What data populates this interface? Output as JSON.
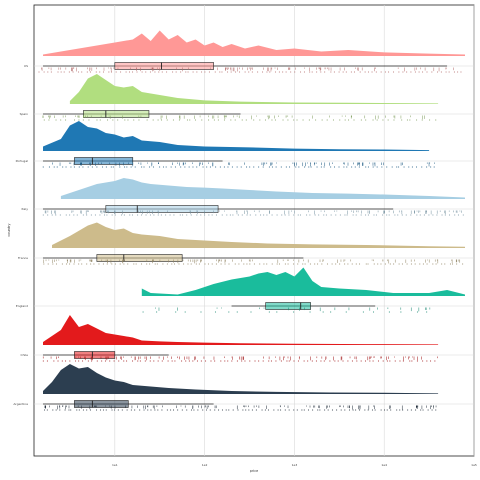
{
  "chart_data": {
    "type": "raincloud",
    "title": "",
    "xlabel": "price",
    "ylabel": "country",
    "xlim": [
      -0.9,
      4.0
    ],
    "x_ticks": [
      0,
      1,
      2,
      3,
      4
    ],
    "x_tick_labels": [
      "1e1",
      "1e2",
      "1e3",
      "1e4",
      "1e5"
    ],
    "grid": true,
    "categories": [
      "US",
      "Spain",
      "Portugal",
      "Italy",
      "France",
      "England",
      "Chile",
      "Argentina"
    ],
    "series": [
      {
        "name": "US",
        "color": "#FF9896",
        "density": [
          [
            -0.8,
            0.05
          ],
          [
            -0.6,
            0.15
          ],
          [
            -0.4,
            0.25
          ],
          [
            -0.2,
            0.35
          ],
          [
            0,
            0.45
          ],
          [
            0.2,
            0.55
          ],
          [
            0.3,
            0.75
          ],
          [
            0.4,
            0.5
          ],
          [
            0.5,
            0.85
          ],
          [
            0.6,
            0.55
          ],
          [
            0.7,
            0.7
          ],
          [
            0.8,
            0.45
          ],
          [
            0.9,
            0.55
          ],
          [
            1.0,
            0.35
          ],
          [
            1.1,
            0.45
          ],
          [
            1.2,
            0.3
          ],
          [
            1.3,
            0.4
          ],
          [
            1.45,
            0.25
          ],
          [
            1.6,
            0.35
          ],
          [
            1.8,
            0.2
          ],
          [
            2.0,
            0.25
          ],
          [
            2.3,
            0.15
          ],
          [
            2.6,
            0.2
          ],
          [
            3.0,
            0.12
          ],
          [
            3.5,
            0.08
          ],
          [
            3.9,
            0.05
          ]
        ],
        "box": {
          "q1": 0.0,
          "median": 0.52,
          "q3": 1.1,
          "whisker_low": -0.8,
          "whisker_high": 3.7
        },
        "points_range": [
          -0.85,
          3.9
        ],
        "n_points": 100
      },
      {
        "name": "Spain",
        "color": "#B1DE7F",
        "density": [
          [
            -0.5,
            0.1
          ],
          [
            -0.4,
            0.4
          ],
          [
            -0.3,
            0.85
          ],
          [
            -0.2,
            1.0
          ],
          [
            -0.1,
            0.8
          ],
          [
            0,
            0.6
          ],
          [
            0.1,
            0.55
          ],
          [
            0.2,
            0.6
          ],
          [
            0.3,
            0.4
          ],
          [
            0.5,
            0.3
          ],
          [
            0.7,
            0.2
          ],
          [
            1.0,
            0.12
          ],
          [
            1.4,
            0.08
          ],
          [
            2.0,
            0.05
          ],
          [
            2.6,
            0.04
          ],
          [
            3.2,
            0.03
          ],
          [
            3.6,
            0.02
          ]
        ],
        "box": {
          "q1": -0.35,
          "median": -0.1,
          "q3": 0.38,
          "whisker_low": -0.8,
          "whisker_high": 1.4
        },
        "points_range": [
          -0.8,
          3.6
        ],
        "n_points": 70
      },
      {
        "name": "Portugal",
        "color": "#1F78B4",
        "density": [
          [
            -0.8,
            0.15
          ],
          [
            -0.6,
            0.4
          ],
          [
            -0.5,
            0.85
          ],
          [
            -0.4,
            1.0
          ],
          [
            -0.3,
            0.8
          ],
          [
            -0.2,
            0.75
          ],
          [
            -0.1,
            0.6
          ],
          [
            0,
            0.55
          ],
          [
            0.1,
            0.45
          ],
          [
            0.2,
            0.5
          ],
          [
            0.3,
            0.35
          ],
          [
            0.5,
            0.3
          ],
          [
            0.7,
            0.2
          ],
          [
            1.0,
            0.15
          ],
          [
            1.5,
            0.12
          ],
          [
            2.0,
            0.08
          ],
          [
            2.5,
            0.06
          ],
          [
            3.0,
            0.05
          ],
          [
            3.5,
            0.03
          ]
        ],
        "box": {
          "q1": -0.45,
          "median": -0.25,
          "q3": 0.2,
          "whisker_low": -0.8,
          "whisker_high": 1.2
        },
        "points_range": [
          -0.8,
          3.6
        ],
        "n_points": 90
      },
      {
        "name": "Italy",
        "color": "#A6CEE3",
        "density": [
          [
            -0.6,
            0.1
          ],
          [
            -0.4,
            0.3
          ],
          [
            -0.2,
            0.5
          ],
          [
            0,
            0.6
          ],
          [
            0.1,
            0.7
          ],
          [
            0.2,
            0.65
          ],
          [
            0.3,
            0.55
          ],
          [
            0.4,
            0.5
          ],
          [
            0.6,
            0.45
          ],
          [
            0.8,
            0.4
          ],
          [
            1.0,
            0.38
          ],
          [
            1.2,
            0.35
          ],
          [
            1.5,
            0.3
          ],
          [
            1.8,
            0.25
          ],
          [
            2.2,
            0.2
          ],
          [
            2.6,
            0.18
          ],
          [
            3.0,
            0.15
          ],
          [
            3.5,
            0.1
          ],
          [
            3.9,
            0.05
          ]
        ],
        "box": {
          "q1": -0.1,
          "median": 0.25,
          "q3": 1.15,
          "whisker_low": -0.8,
          "whisker_high": 3.1
        },
        "points_range": [
          -0.8,
          3.9
        ],
        "n_points": 100
      },
      {
        "name": "France",
        "color": "#CDBB8B",
        "density": [
          [
            -0.7,
            0.1
          ],
          [
            -0.5,
            0.4
          ],
          [
            -0.3,
            0.75
          ],
          [
            -0.2,
            0.85
          ],
          [
            -0.1,
            0.7
          ],
          [
            0,
            0.6
          ],
          [
            0.1,
            0.65
          ],
          [
            0.2,
            0.5
          ],
          [
            0.3,
            0.45
          ],
          [
            0.5,
            0.4
          ],
          [
            0.7,
            0.3
          ],
          [
            1.0,
            0.25
          ],
          [
            1.3,
            0.2
          ],
          [
            1.7,
            0.15
          ],
          [
            2.2,
            0.12
          ],
          [
            2.8,
            0.1
          ],
          [
            3.5,
            0.06
          ],
          [
            3.9,
            0.04
          ]
        ],
        "box": {
          "q1": -0.2,
          "median": 0.1,
          "q3": 0.75,
          "whisker_low": -0.8,
          "whisker_high": 2.1
        },
        "points_range": [
          -0.8,
          3.9
        ],
        "n_points": 100
      },
      {
        "name": "England",
        "color": "#1ABC9C",
        "density": [
          [
            0.3,
            0.25
          ],
          [
            0.4,
            0.1
          ],
          [
            0.7,
            0.05
          ],
          [
            0.9,
            0.2
          ],
          [
            1.1,
            0.4
          ],
          [
            1.3,
            0.55
          ],
          [
            1.5,
            0.65
          ],
          [
            1.6,
            0.75
          ],
          [
            1.7,
            0.8
          ],
          [
            1.8,
            0.7
          ],
          [
            1.9,
            0.8
          ],
          [
            2.0,
            0.65
          ],
          [
            2.1,
            0.95
          ],
          [
            2.2,
            0.5
          ],
          [
            2.3,
            0.3
          ],
          [
            2.5,
            0.25
          ],
          [
            2.8,
            0.2
          ],
          [
            3.1,
            0.1
          ],
          [
            3.5,
            0.1
          ],
          [
            3.7,
            0.2
          ],
          [
            3.9,
            0.05
          ]
        ],
        "box": {
          "q1": 1.68,
          "median": 2.07,
          "q3": 2.18,
          "whisker_low": 1.3,
          "whisker_high": 2.9
        },
        "points_range": [
          0.3,
          3.6
        ],
        "n_points": 22
      },
      {
        "name": "Chile",
        "color": "#E31A1C",
        "density": [
          [
            -0.8,
            0.1
          ],
          [
            -0.6,
            0.5
          ],
          [
            -0.5,
            1.0
          ],
          [
            -0.4,
            0.6
          ],
          [
            -0.3,
            0.7
          ],
          [
            -0.2,
            0.55
          ],
          [
            -0.1,
            0.4
          ],
          [
            0,
            0.35
          ],
          [
            0.1,
            0.3
          ],
          [
            0.2,
            0.25
          ],
          [
            0.3,
            0.15
          ],
          [
            0.5,
            0.12
          ],
          [
            0.7,
            0.1
          ],
          [
            1.0,
            0.08
          ],
          [
            1.4,
            0.06
          ],
          [
            2.0,
            0.04
          ],
          [
            2.8,
            0.03
          ],
          [
            3.6,
            0.02
          ]
        ],
        "box": {
          "q1": -0.45,
          "median": -0.25,
          "q3": 0.0,
          "whisker_low": -0.8,
          "whisker_high": 0.6
        },
        "points_range": [
          -0.8,
          3.6
        ],
        "n_points": 90
      },
      {
        "name": "Argentina",
        "color": "#2C3E50",
        "density": [
          [
            -0.8,
            0.1
          ],
          [
            -0.7,
            0.4
          ],
          [
            -0.6,
            0.8
          ],
          [
            -0.5,
            1.0
          ],
          [
            -0.4,
            0.85
          ],
          [
            -0.3,
            0.9
          ],
          [
            -0.2,
            0.7
          ],
          [
            -0.1,
            0.55
          ],
          [
            0,
            0.45
          ],
          [
            0.1,
            0.4
          ],
          [
            0.2,
            0.3
          ],
          [
            0.4,
            0.25
          ],
          [
            0.6,
            0.2
          ],
          [
            0.9,
            0.15
          ],
          [
            1.3,
            0.1
          ],
          [
            1.8,
            0.07
          ],
          [
            2.4,
            0.05
          ],
          [
            3.0,
            0.04
          ],
          [
            3.6,
            0.02
          ]
        ],
        "box": {
          "q1": -0.45,
          "median": -0.25,
          "q3": 0.15,
          "whisker_low": -0.8,
          "whisker_high": 1.1
        },
        "points_range": [
          -0.8,
          3.6
        ],
        "n_points": 100
      }
    ]
  }
}
